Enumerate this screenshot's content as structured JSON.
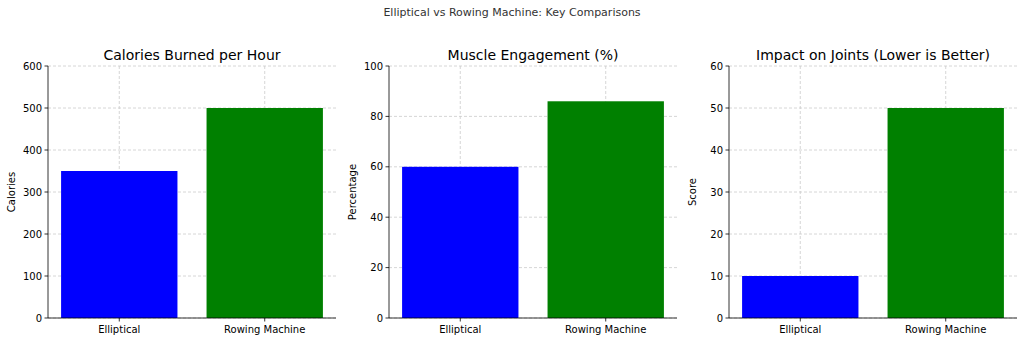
{
  "title": "Elliptical vs Rowing Machine: Key Comparisons",
  "chart_data": [
    {
      "type": "bar",
      "title": "Calories Burned per Hour",
      "categories": [
        "Elliptical",
        "Rowing Machine"
      ],
      "values": [
        350,
        500
      ],
      "colors": [
        "blue",
        "green"
      ],
      "ylabel": "Calories",
      "ylim": [
        0,
        600
      ],
      "yticks": [
        0,
        100,
        200,
        300,
        400,
        500,
        600
      ],
      "grid": true
    },
    {
      "type": "bar",
      "title": "Muscle Engagement (%)",
      "categories": [
        "Elliptical",
        "Rowing Machine"
      ],
      "values": [
        60,
        86
      ],
      "colors": [
        "blue",
        "green"
      ],
      "ylabel": "Percentage",
      "ylim": [
        0,
        100
      ],
      "yticks": [
        0,
        20,
        40,
        60,
        80,
        100
      ],
      "grid": true
    },
    {
      "type": "bar",
      "title": "Impact on Joints (Lower is Better)",
      "categories": [
        "Elliptical",
        "Rowing Machine"
      ],
      "values": [
        10,
        50
      ],
      "colors": [
        "blue",
        "green"
      ],
      "ylabel": "Score",
      "ylim": [
        0,
        60
      ],
      "yticks": [
        0,
        10,
        20,
        30,
        40,
        50,
        60
      ],
      "grid": true
    }
  ]
}
